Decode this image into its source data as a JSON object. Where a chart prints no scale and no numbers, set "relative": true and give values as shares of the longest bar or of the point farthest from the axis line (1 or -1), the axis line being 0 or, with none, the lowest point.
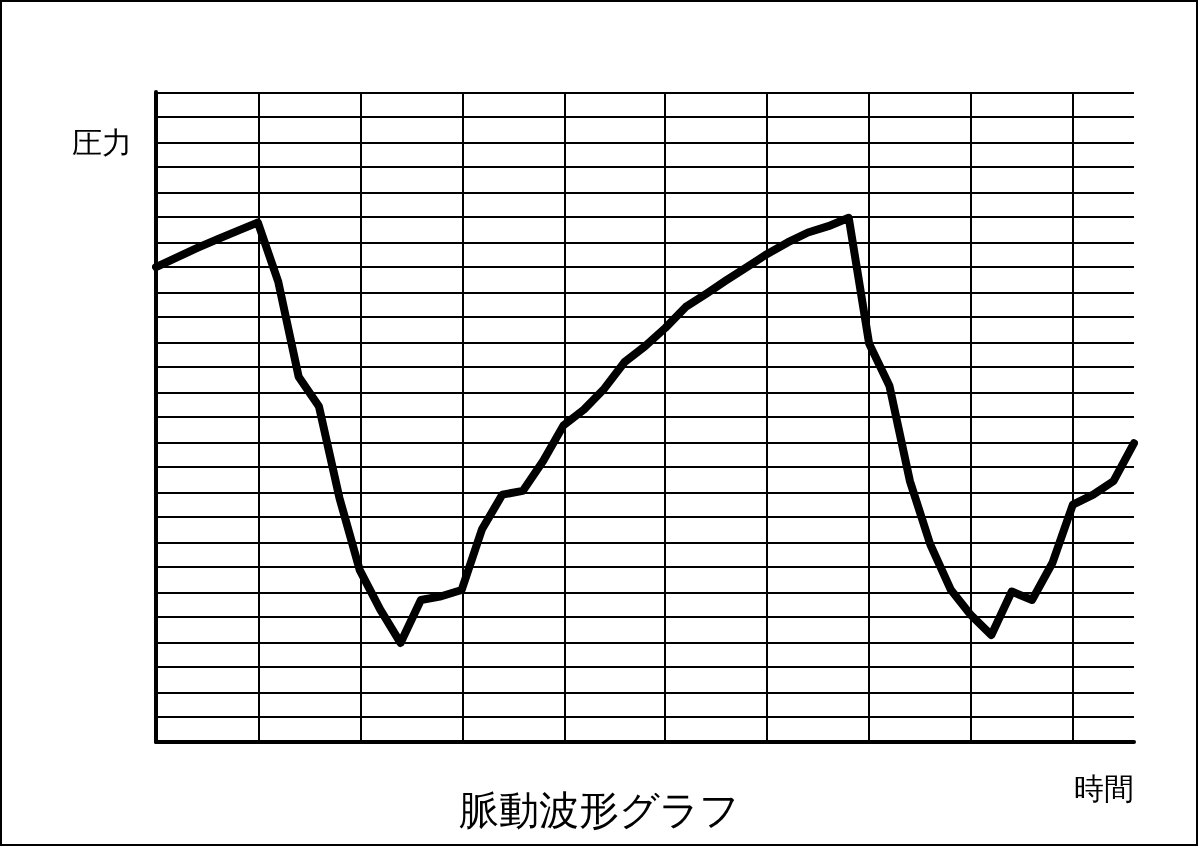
{
  "chart_data": {
    "type": "line",
    "title": "脈動波形グラフ",
    "xlabel": "時間",
    "ylabel": "圧力",
    "relative": true,
    "grid": true,
    "marker": "none",
    "line_style": "solid",
    "categories": [
      null,
      null,
      null,
      null,
      null,
      null,
      null,
      null,
      null,
      null,
      null,
      null,
      null,
      null,
      null,
      null,
      null,
      null,
      null,
      null,
      null,
      null,
      null,
      null,
      null,
      null,
      null,
      null,
      null,
      null,
      null,
      null,
      null,
      null,
      null,
      null,
      null,
      null,
      null,
      null,
      null,
      null,
      null,
      null,
      null,
      null,
      null,
      null,
      null
    ],
    "series": [
      {
        "color": "#000000",
        "values": [
          0.906,
          0.924,
          0.942,
          0.959,
          0.975,
          0.991,
          0.878,
          0.697,
          0.64,
          0.466,
          0.328,
          0.253,
          0.189,
          0.271,
          0.278,
          0.29,
          0.406,
          0.472,
          0.479,
          0.536,
          0.604,
          0.634,
          0.674,
          0.725,
          0.755,
          0.79,
          0.83,
          0.855,
          0.881,
          0.906,
          0.931,
          0.953,
          0.972,
          0.984,
          1,
          0.76,
          0.679,
          0.498,
          0.377,
          0.291,
          0.242,
          0.204,
          0.287,
          0.271,
          0.342,
          0.453,
          0.472,
          0.498,
          0.57
        ]
      }
    ]
  }
}
